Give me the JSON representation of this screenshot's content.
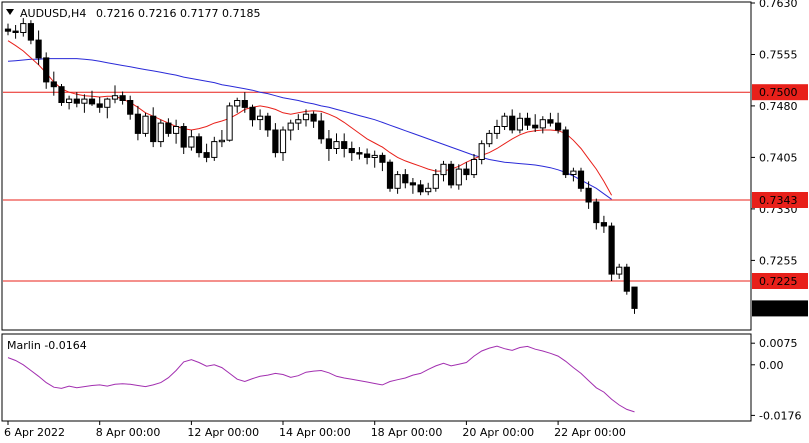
{
  "header": {
    "symbol": "AUDUSD,H4",
    "open": "0.7216",
    "high": "0.7216",
    "low": "0.7177",
    "close": "0.7185"
  },
  "colors": {
    "background": "#ffffff",
    "bull_candle": "#ffffff",
    "bear_candle": "#000000",
    "fast_ma": "#e8201a",
    "slow_ma": "#2a2ad8",
    "level_line": "#e8201a",
    "marlin": "#a22fb0"
  },
  "chart_data": [
    {
      "type": "candlestick",
      "title": "AUDUSD,H4",
      "ylim": [
        0.7155,
        0.763
      ],
      "y_ticks": [
        "0.7630",
        "0.7555",
        "0.7480",
        "0.7405",
        "0.7330",
        "0.7255"
      ],
      "level_lines": [
        "0.7500",
        "0.7343",
        "0.7225"
      ],
      "current_price": "0.7185",
      "x_labels": [
        "6 Apr 2022",
        "8 Apr 00:00",
        "12 Apr 00:00",
        "14 Apr 00:00",
        "18 Apr 00:00",
        "20 Apr 00:00",
        "22 Apr 00:00"
      ],
      "ohlc": [
        [
          0.7592,
          0.76,
          0.7583,
          0.7589
        ],
        [
          0.7589,
          0.7598,
          0.7578,
          0.7587
        ],
        [
          0.7587,
          0.7608,
          0.7581,
          0.76
        ],
        [
          0.76,
          0.7605,
          0.757,
          0.7576
        ],
        [
          0.7576,
          0.759,
          0.754,
          0.755
        ],
        [
          0.755,
          0.7558,
          0.7505,
          0.7515
        ],
        [
          0.7515,
          0.753,
          0.7495,
          0.7508
        ],
        [
          0.7508,
          0.7512,
          0.748,
          0.7485
        ],
        [
          0.7485,
          0.7495,
          0.7475,
          0.749
        ],
        [
          0.749,
          0.75,
          0.7478,
          0.7484
        ],
        [
          0.7484,
          0.7497,
          0.747,
          0.749
        ],
        [
          0.749,
          0.7502,
          0.748,
          0.7483
        ],
        [
          0.7483,
          0.7493,
          0.747,
          0.7478
        ],
        [
          0.7478,
          0.7492,
          0.7462,
          0.749
        ],
        [
          0.749,
          0.751,
          0.7484,
          0.7495
        ],
        [
          0.7495,
          0.7501,
          0.7482,
          0.7488
        ],
        [
          0.7488,
          0.7495,
          0.746,
          0.7468
        ],
        [
          0.7468,
          0.748,
          0.743,
          0.744
        ],
        [
          0.744,
          0.747,
          0.7435,
          0.7465
        ],
        [
          0.7465,
          0.7478,
          0.742,
          0.7428
        ],
        [
          0.7428,
          0.746,
          0.742,
          0.7455
        ],
        [
          0.7455,
          0.7462,
          0.7435,
          0.744
        ],
        [
          0.744,
          0.746,
          0.7425,
          0.745
        ],
        [
          0.745,
          0.7455,
          0.741,
          0.742
        ],
        [
          0.742,
          0.7445,
          0.7415,
          0.7435
        ],
        [
          0.7435,
          0.744,
          0.7405,
          0.7412
        ],
        [
          0.7412,
          0.7425,
          0.7398,
          0.7405
        ],
        [
          0.7405,
          0.7435,
          0.74,
          0.7428
        ],
        [
          0.7428,
          0.7445,
          0.742,
          0.743
        ],
        [
          0.743,
          0.7485,
          0.7428,
          0.748
        ],
        [
          0.748,
          0.7492,
          0.747,
          0.7488
        ],
        [
          0.7488,
          0.75,
          0.747,
          0.7478
        ],
        [
          0.7478,
          0.7482,
          0.745,
          0.746
        ],
        [
          0.746,
          0.7475,
          0.7445,
          0.7465
        ],
        [
          0.7465,
          0.747,
          0.7435,
          0.7445
        ],
        [
          0.7445,
          0.7455,
          0.7405,
          0.7412
        ],
        [
          0.7412,
          0.745,
          0.74,
          0.7445
        ],
        [
          0.7445,
          0.746,
          0.743,
          0.7455
        ],
        [
          0.7455,
          0.7468,
          0.7445,
          0.746
        ],
        [
          0.746,
          0.7475,
          0.745,
          0.7468
        ],
        [
          0.7468,
          0.7472,
          0.7448,
          0.7458
        ],
        [
          0.7458,
          0.747,
          0.7425,
          0.7432
        ],
        [
          0.7432,
          0.7445,
          0.74,
          0.7418
        ],
        [
          0.7418,
          0.744,
          0.741,
          0.7428
        ],
        [
          0.7428,
          0.744,
          0.7405,
          0.7418
        ],
        [
          0.7418,
          0.7428,
          0.74,
          0.7412
        ],
        [
          0.7412,
          0.742,
          0.7402,
          0.741
        ],
        [
          0.741,
          0.7418,
          0.7395,
          0.7405
        ],
        [
          0.7405,
          0.7415,
          0.739,
          0.7408
        ],
        [
          0.7408,
          0.7412,
          0.7385,
          0.7398
        ],
        [
          0.7398,
          0.7402,
          0.7355,
          0.736
        ],
        [
          0.736,
          0.7385,
          0.7352,
          0.738
        ],
        [
          0.738,
          0.7388,
          0.736,
          0.7368
        ],
        [
          0.7368,
          0.7375,
          0.7352,
          0.7365
        ],
        [
          0.7365,
          0.7372,
          0.735,
          0.7355
        ],
        [
          0.7355,
          0.7368,
          0.735,
          0.736
        ],
        [
          0.736,
          0.7388,
          0.7355,
          0.738
        ],
        [
          0.738,
          0.74,
          0.737,
          0.7395
        ],
        [
          0.7395,
          0.74,
          0.736,
          0.7365
        ],
        [
          0.7365,
          0.7395,
          0.7358,
          0.7388
        ],
        [
          0.7388,
          0.7398,
          0.7372,
          0.738
        ],
        [
          0.738,
          0.741,
          0.7375,
          0.7402
        ],
        [
          0.7402,
          0.743,
          0.7395,
          0.7425
        ],
        [
          0.7425,
          0.7445,
          0.742,
          0.744
        ],
        [
          0.744,
          0.746,
          0.7432,
          0.745
        ],
        [
          0.745,
          0.747,
          0.7445,
          0.7465
        ],
        [
          0.7465,
          0.7475,
          0.744,
          0.7445
        ],
        [
          0.7445,
          0.747,
          0.744,
          0.7462
        ],
        [
          0.7462,
          0.747,
          0.7445,
          0.7452
        ],
        [
          0.7452,
          0.7468,
          0.7442,
          0.7448
        ],
        [
          0.7448,
          0.7465,
          0.744,
          0.746
        ],
        [
          0.746,
          0.747,
          0.745,
          0.7455
        ],
        [
          0.7455,
          0.747,
          0.744,
          0.7445
        ],
        [
          0.7445,
          0.745,
          0.7375,
          0.738
        ],
        [
          0.738,
          0.739,
          0.737,
          0.7385
        ],
        [
          0.7385,
          0.739,
          0.7355,
          0.736
        ],
        [
          0.736,
          0.737,
          0.733,
          0.734
        ],
        [
          0.734,
          0.7345,
          0.73,
          0.731
        ],
        [
          0.731,
          0.732,
          0.7295,
          0.7305
        ],
        [
          0.7305,
          0.731,
          0.7225,
          0.7235
        ],
        [
          0.7235,
          0.725,
          0.7228,
          0.7245
        ],
        [
          0.7245,
          0.725,
          0.7205,
          0.721
        ],
        [
          0.7216,
          0.7216,
          0.7177,
          0.7185
        ]
      ],
      "fast_ma": [
        0.7575,
        0.7568,
        0.756,
        0.755,
        0.754,
        0.7528,
        0.7515,
        0.7505,
        0.75,
        0.7497,
        0.7495,
        0.7494,
        0.7493,
        0.7494,
        0.7494,
        0.749,
        0.7485,
        0.7478,
        0.747,
        0.7465,
        0.746,
        0.7455,
        0.745,
        0.7447,
        0.7445,
        0.7447,
        0.745,
        0.7455,
        0.7458,
        0.7462,
        0.7468,
        0.7475,
        0.7478,
        0.748,
        0.7478,
        0.7475,
        0.747,
        0.7468,
        0.747,
        0.7472,
        0.7473,
        0.7472,
        0.7468,
        0.7463,
        0.7456,
        0.7448,
        0.744,
        0.7432,
        0.7426,
        0.742,
        0.7412,
        0.7405,
        0.74,
        0.7396,
        0.7392,
        0.7388,
        0.7385,
        0.7385,
        0.7388,
        0.7392,
        0.7398,
        0.7403,
        0.7408,
        0.7412,
        0.7418,
        0.7425,
        0.7432,
        0.7438,
        0.7442,
        0.7444,
        0.7445,
        0.7445,
        0.7444,
        0.744,
        0.743,
        0.7418,
        0.7403,
        0.7388,
        0.737,
        0.735,
        0.733,
        0.731,
        0.729
      ],
      "slow_ma": [
        0.7545,
        0.7546,
        0.7547,
        0.7548,
        0.7548,
        0.7549,
        0.7549,
        0.7549,
        0.7549,
        0.7549,
        0.7548,
        0.7547,
        0.7545,
        0.7543,
        0.7541,
        0.7539,
        0.7537,
        0.7535,
        0.7533,
        0.7531,
        0.7529,
        0.7527,
        0.7525,
        0.7522,
        0.752,
        0.7518,
        0.7516,
        0.7514,
        0.7511,
        0.7509,
        0.7507,
        0.7505,
        0.7503,
        0.75,
        0.7498,
        0.7495,
        0.7492,
        0.749,
        0.7488,
        0.7485,
        0.7483,
        0.748,
        0.7478,
        0.7475,
        0.7472,
        0.7469,
        0.7466,
        0.7463,
        0.746,
        0.7456,
        0.7452,
        0.7448,
        0.7444,
        0.744,
        0.7436,
        0.7432,
        0.7428,
        0.7424,
        0.742,
        0.7416,
        0.7412,
        0.7408,
        0.7405,
        0.7402,
        0.74,
        0.7398,
        0.7397,
        0.7396,
        0.7395,
        0.7394,
        0.7392,
        0.739,
        0.7387,
        0.7383,
        0.7378,
        0.7372,
        0.7366,
        0.736,
        0.7352,
        0.7344,
        0.7336,
        0.7328,
        0.732
      ],
      "fast_ma_visible_until": 79,
      "slow_ma_visible_until": 79
    },
    {
      "type": "line",
      "title": "Marlin -0.0164",
      "ylim": [
        -0.0192,
        0.01
      ],
      "y_ticks": [
        "0.0075",
        "0.00",
        "-0.0176"
      ],
      "series": [
        {
          "name": "Marlin",
          "values": [
            0.0025,
            0.0015,
            0.0,
            -0.002,
            -0.004,
            -0.0062,
            -0.0078,
            -0.0082,
            -0.0074,
            -0.008,
            -0.0076,
            -0.0072,
            -0.007,
            -0.0074,
            -0.0068,
            -0.0066,
            -0.0068,
            -0.0072,
            -0.0076,
            -0.007,
            -0.0062,
            -0.0045,
            -0.002,
            0.001,
            0.0018,
            0.0008,
            -0.0005,
            0.0,
            -0.001,
            -0.003,
            -0.005,
            -0.0058,
            -0.0048,
            -0.004,
            -0.0036,
            -0.003,
            -0.0034,
            -0.0044,
            -0.0038,
            -0.0026,
            -0.0022,
            -0.002,
            -0.0028,
            -0.004,
            -0.0046,
            -0.005,
            -0.0055,
            -0.006,
            -0.0065,
            -0.007,
            -0.0058,
            -0.0052,
            -0.0046,
            -0.0036,
            -0.003,
            -0.0016,
            -0.0004,
            0.0005,
            -0.0004,
            0.0002,
            0.0008,
            0.003,
            0.0048,
            0.0058,
            0.0065,
            0.0056,
            0.005,
            0.006,
            0.0064,
            0.0054,
            0.0048,
            0.004,
            0.003,
            0.0012,
            -0.001,
            -0.003,
            -0.0055,
            -0.008,
            -0.0095,
            -0.012,
            -0.014,
            -0.0155,
            -0.0164
          ]
        }
      ]
    }
  ]
}
